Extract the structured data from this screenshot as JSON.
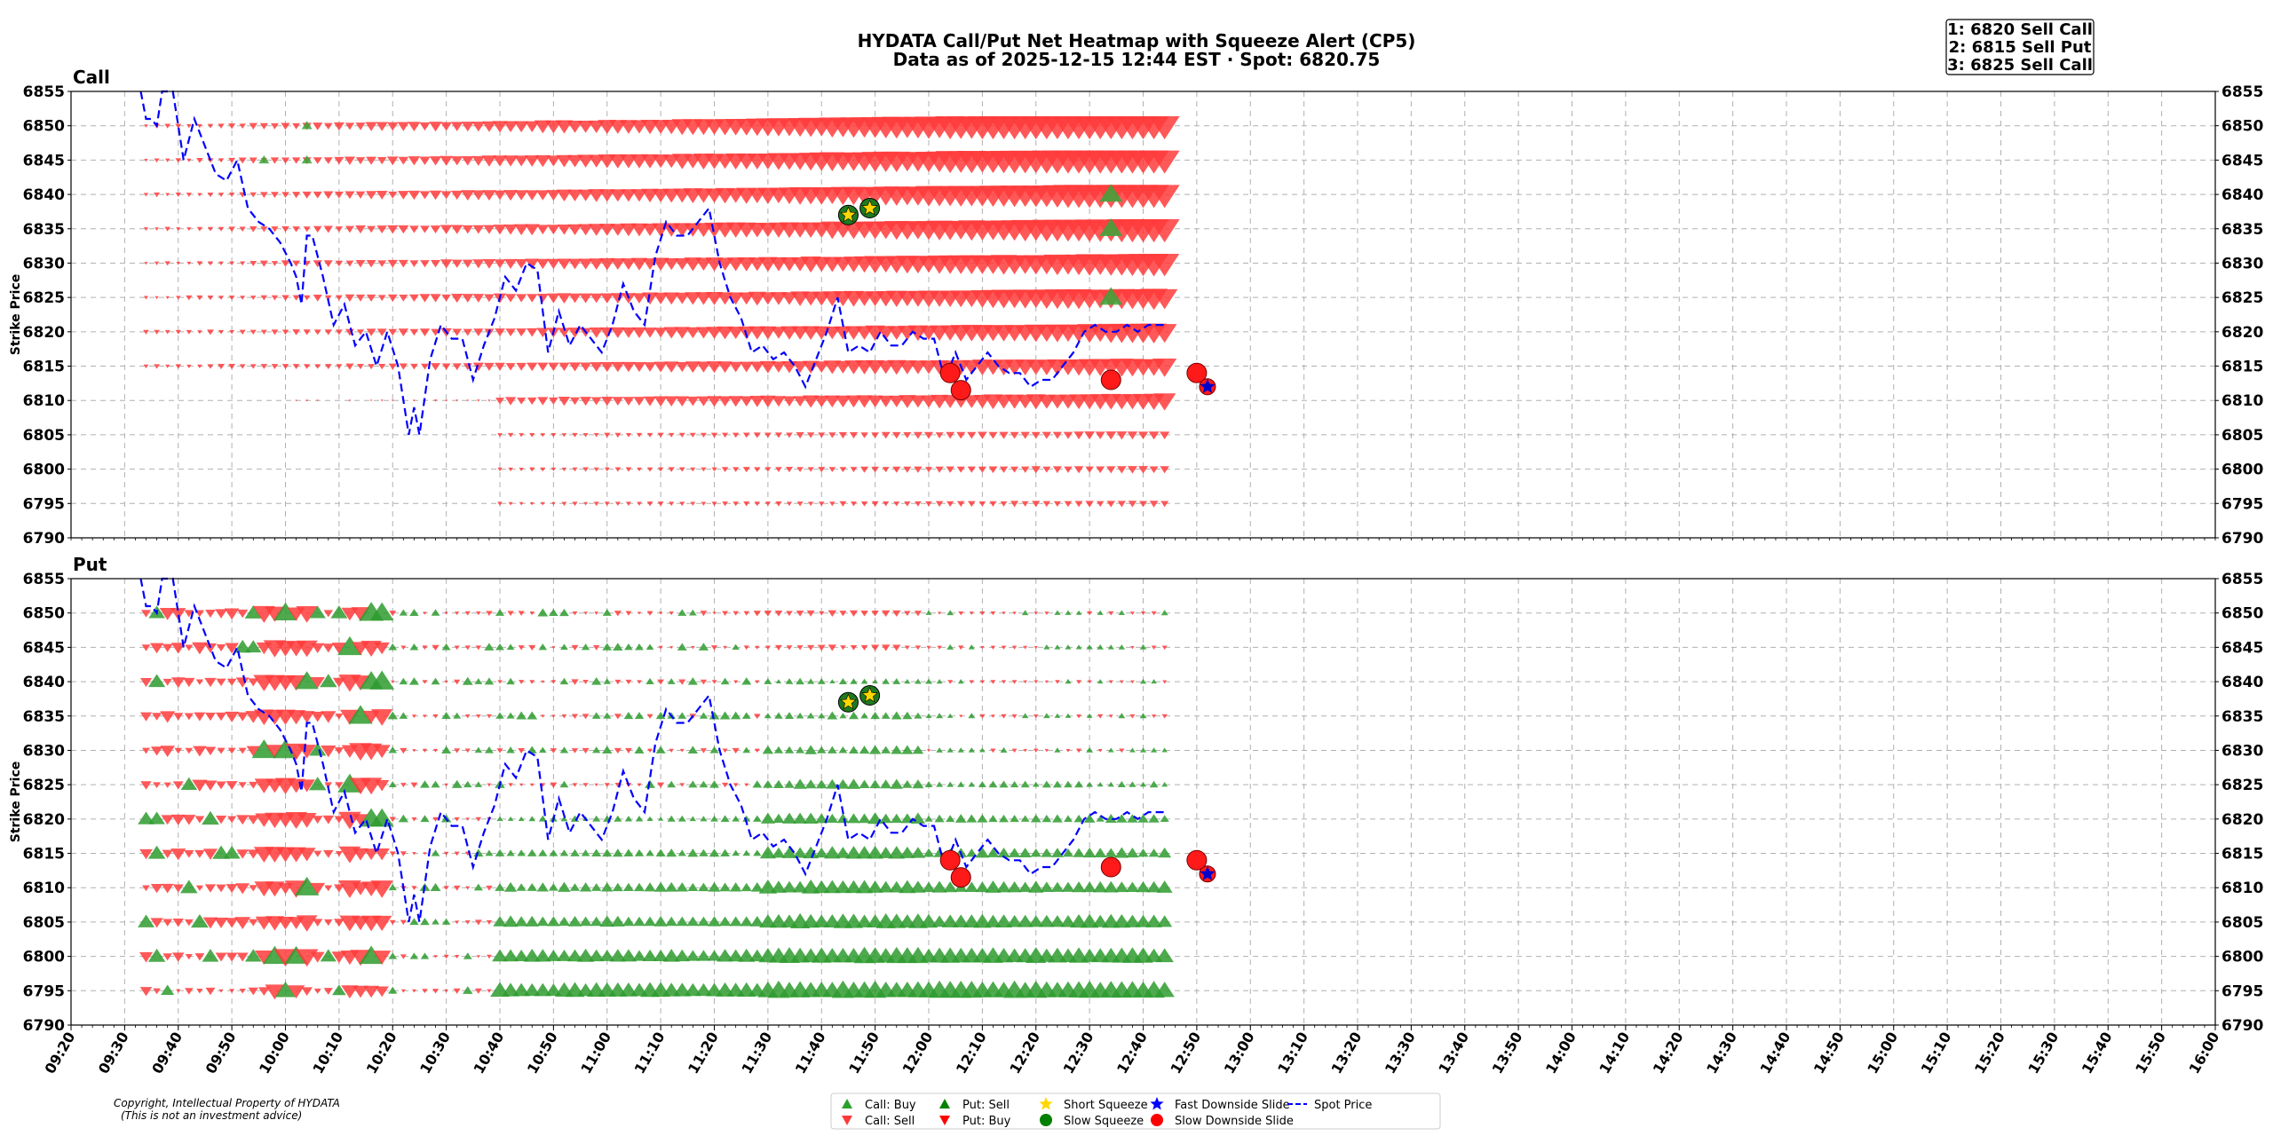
{
  "chart_data": {
    "type": "heatmap",
    "title_line1": "HYDATA Call/Put Net Heatmap with Squeeze Alert (CP5)",
    "title_line2": "Data as of 2025-12-15 12:44 EST · Spot: 6820.75",
    "ranking": [
      "1: 6820 Sell Call",
      "2: 6815 Sell Put",
      "3: 6825 Sell Call"
    ],
    "ylabel": "Strike Price",
    "ylim": [
      6790,
      6855
    ],
    "yticks": [
      6790,
      6795,
      6800,
      6805,
      6810,
      6815,
      6820,
      6825,
      6830,
      6835,
      6840,
      6845,
      6850,
      6855
    ],
    "xticks": [
      "09:20",
      "09:30",
      "09:40",
      "09:50",
      "10:00",
      "10:10",
      "10:20",
      "10:30",
      "10:40",
      "10:50",
      "11:00",
      "11:10",
      "11:20",
      "11:30",
      "11:40",
      "11:50",
      "12:00",
      "12:10",
      "12:20",
      "12:30",
      "12:40",
      "12:50",
      "13:00",
      "13:10",
      "13:20",
      "13:30",
      "13:40",
      "13:50",
      "14:00",
      "14:10",
      "14:20",
      "14:30",
      "14:40",
      "14:50",
      "15:00",
      "15:10",
      "15:20",
      "15:30",
      "15:40",
      "15:50",
      "16:00"
    ],
    "x_range_minutes": [
      560,
      960
    ],
    "panels": [
      {
        "name": "Call",
        "key": "call"
      },
      {
        "name": "Put",
        "key": "put"
      }
    ],
    "spot_price": {
      "times": [
        573,
        574,
        575,
        576,
        577,
        578,
        579,
        581,
        583,
        585,
        587,
        589,
        591,
        593,
        595,
        597,
        599,
        601,
        602,
        603,
        604,
        605,
        607,
        609,
        611,
        613,
        615,
        617,
        619,
        621,
        623,
        624,
        625,
        627,
        629,
        631,
        633,
        635,
        637,
        639,
        641,
        643,
        645,
        647,
        649,
        651,
        653,
        655,
        657,
        659,
        661,
        663,
        665,
        667,
        669,
        671,
        673,
        675,
        677,
        679,
        681,
        683,
        685,
        687,
        689,
        691,
        693,
        695,
        697,
        699,
        701,
        703,
        705,
        707,
        709,
        711,
        713,
        715,
        717,
        719,
        721,
        723,
        725,
        727,
        729,
        731,
        733,
        735,
        737,
        739,
        741,
        743,
        745,
        747,
        749,
        751,
        753,
        755,
        757,
        759,
        761,
        763,
        764
      ],
      "values": [
        6855,
        6851,
        6851,
        6850,
        6855,
        6857,
        6855,
        6845,
        6851,
        6847,
        6843,
        6842,
        6845,
        6838,
        6836,
        6835,
        6833,
        6830,
        6828,
        6824,
        6834,
        6834,
        6828,
        6821,
        6824,
        6818,
        6820,
        6815,
        6820,
        6815,
        6805,
        6809,
        6805,
        6816,
        6821,
        6819,
        6819,
        6813,
        6818,
        6822,
        6828,
        6826,
        6830,
        6829,
        6817,
        6823,
        6818,
        6821,
        6819,
        6817,
        6821,
        6827,
        6823,
        6821,
        6831,
        6836,
        6834,
        6834,
        6836,
        6838,
        6830,
        6825,
        6822,
        6817,
        6818,
        6816,
        6817,
        6815,
        6812,
        6816,
        6820,
        6825,
        6817,
        6818,
        6817,
        6820,
        6818,
        6818,
        6820,
        6819,
        6819,
        6813,
        6817,
        6813,
        6815,
        6817,
        6815,
        6814,
        6814,
        6812,
        6813,
        6813,
        6815,
        6817,
        6820,
        6821,
        6820,
        6820,
        6821,
        6820,
        6821,
        6821,
        6821
      ]
    },
    "squeeze_markers": [
      {
        "type": "short_squeeze",
        "time": 705,
        "price": 6837
      },
      {
        "type": "short_squeeze",
        "time": 709,
        "price": 6838
      },
      {
        "type": "slow_downside_slide",
        "time": 724,
        "price": 6814
      },
      {
        "type": "slow_downside_slide",
        "time": 726,
        "price": 6811.5
      },
      {
        "type": "slow_downside_slide",
        "time": 754,
        "price": 6813
      },
      {
        "type": "slow_downside_slide",
        "time": 770,
        "price": 6814
      },
      {
        "type": "fast_downside_slide",
        "time": 772,
        "price": 6812
      }
    ],
    "legend": [
      {
        "label": "Call: Buy",
        "symbol": "triangle-up",
        "color": "#2ca02c"
      },
      {
        "label": "Call: Sell",
        "symbol": "triangle-down",
        "color": "#ff3b3b"
      },
      {
        "label": "Put: Sell",
        "symbol": "triangle-up",
        "color": "#008000"
      },
      {
        "label": "Put: Buy",
        "symbol": "triangle-down",
        "color": "#ff0000"
      },
      {
        "label": "Short Squeeze",
        "symbol": "star",
        "color": "#ffd700"
      },
      {
        "label": "Slow Squeeze",
        "symbol": "circle",
        "color": "#008000"
      },
      {
        "label": "Fast Downside Slide",
        "symbol": "star",
        "color": "#0000ff"
      },
      {
        "label": "Slow Downside Slide",
        "symbol": "circle",
        "color": "#ff0000"
      },
      {
        "label": "Spot Price",
        "symbol": "dashed-line",
        "color": "#0000ff"
      }
    ]
  },
  "copyright": {
    "line1": "Copyright, Intellectual Property of HYDATA",
    "line2": "(This is not an investment advice)"
  }
}
